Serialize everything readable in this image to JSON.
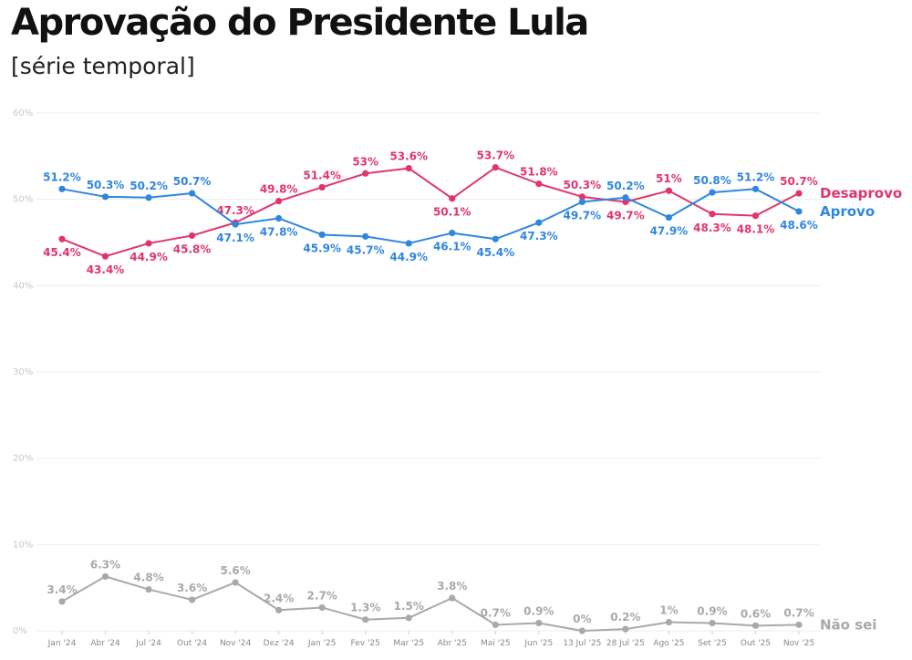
{
  "title": "Aprovação do Presidente Lula",
  "subtitle": "[série temporal]",
  "colors": {
    "desaprovo": "#e0356b",
    "aprovo": "#2f86e0",
    "nao_sei": "#a9a9a9",
    "grid": "#eeeeee",
    "axis_text": "#9a9a9a"
  },
  "chart_data": {
    "type": "line",
    "title": "Aprovação do Presidente Lula",
    "subtitle": "[série temporal]",
    "xlabel": "",
    "ylabel": "",
    "ylim": [
      0,
      60
    ],
    "yticks": [
      0,
      10,
      20,
      30,
      40,
      50,
      60
    ],
    "ytick_labels": [
      "0%",
      "10%",
      "20%",
      "30%",
      "40%",
      "50%",
      "60%"
    ],
    "grid": true,
    "categories": [
      "Jan '24",
      "Abr '24",
      "Jul '24",
      "Out '24",
      "Nov '24",
      "Dez '24",
      "Jan '25",
      "Fev '25",
      "Mar '25",
      "Abr '25",
      "Mai '25",
      "Jun '25",
      "13 Jul '25",
      "28 Jul '25",
      "Ago '25",
      "Set '25",
      "Out '25",
      "Nov '25"
    ],
    "series": [
      {
        "name": "Desaprovo",
        "key": "desaprovo",
        "values": [
          45.4,
          43.4,
          44.9,
          45.8,
          47.3,
          49.8,
          51.4,
          53.0,
          53.6,
          50.1,
          53.7,
          51.8,
          50.3,
          49.7,
          51.0,
          48.3,
          48.1,
          50.7
        ],
        "labels": [
          "45.4%",
          "43.4%",
          "44.9%",
          "45.8%",
          "47.3%",
          "49.8%",
          "51.4%",
          "53%",
          "53.6%",
          "50.1%",
          "53.7%",
          "51.8%",
          "50.3%",
          "49.7%",
          "51%",
          "48.3%",
          "48.1%",
          "50.7%"
        ],
        "label_pos": [
          "below",
          "below",
          "below",
          "below",
          "above",
          "above",
          "above",
          "above",
          "above",
          "below",
          "above",
          "above",
          "above",
          "below",
          "above",
          "below",
          "below",
          "above"
        ]
      },
      {
        "name": "Aprovo",
        "key": "aprovo",
        "values": [
          51.2,
          50.3,
          50.2,
          50.7,
          47.1,
          47.8,
          45.9,
          45.7,
          44.9,
          46.1,
          45.4,
          47.3,
          49.7,
          50.2,
          47.9,
          50.8,
          51.2,
          48.6
        ],
        "labels": [
          "51.2%",
          "50.3%",
          "50.2%",
          "50.7%",
          "47.1%",
          "47.8%",
          "45.9%",
          "45.7%",
          "44.9%",
          "46.1%",
          "45.4%",
          "47.3%",
          "49.7%",
          "50.2%",
          "47.9%",
          "50.8%",
          "51.2%",
          "48.6%"
        ],
        "label_pos": [
          "above",
          "above",
          "above",
          "above",
          "below",
          "below",
          "below",
          "below",
          "below",
          "below",
          "below",
          "below",
          "below",
          "above",
          "below",
          "above",
          "above",
          "below"
        ]
      },
      {
        "name": "Não sei",
        "key": "nao_sei",
        "values": [
          3.4,
          6.3,
          4.8,
          3.6,
          5.6,
          2.4,
          2.7,
          1.3,
          1.5,
          3.8,
          0.7,
          0.9,
          0.0,
          0.2,
          1.0,
          0.9,
          0.6,
          0.7
        ],
        "labels": [
          "3.4%",
          "6.3%",
          "4.8%",
          "3.6%",
          "5.6%",
          "2.4%",
          "2.7%",
          "1.3%",
          "1.5%",
          "3.8%",
          "0.7%",
          "0.9%",
          "0%",
          "0.2%",
          "1%",
          "0.9%",
          "0.6%",
          "0.7%"
        ],
        "label_pos": [
          "above",
          "above",
          "above",
          "above",
          "above",
          "above",
          "above",
          "above",
          "above",
          "above",
          "above",
          "above",
          "above",
          "above",
          "above",
          "above",
          "above",
          "above"
        ]
      }
    ]
  }
}
